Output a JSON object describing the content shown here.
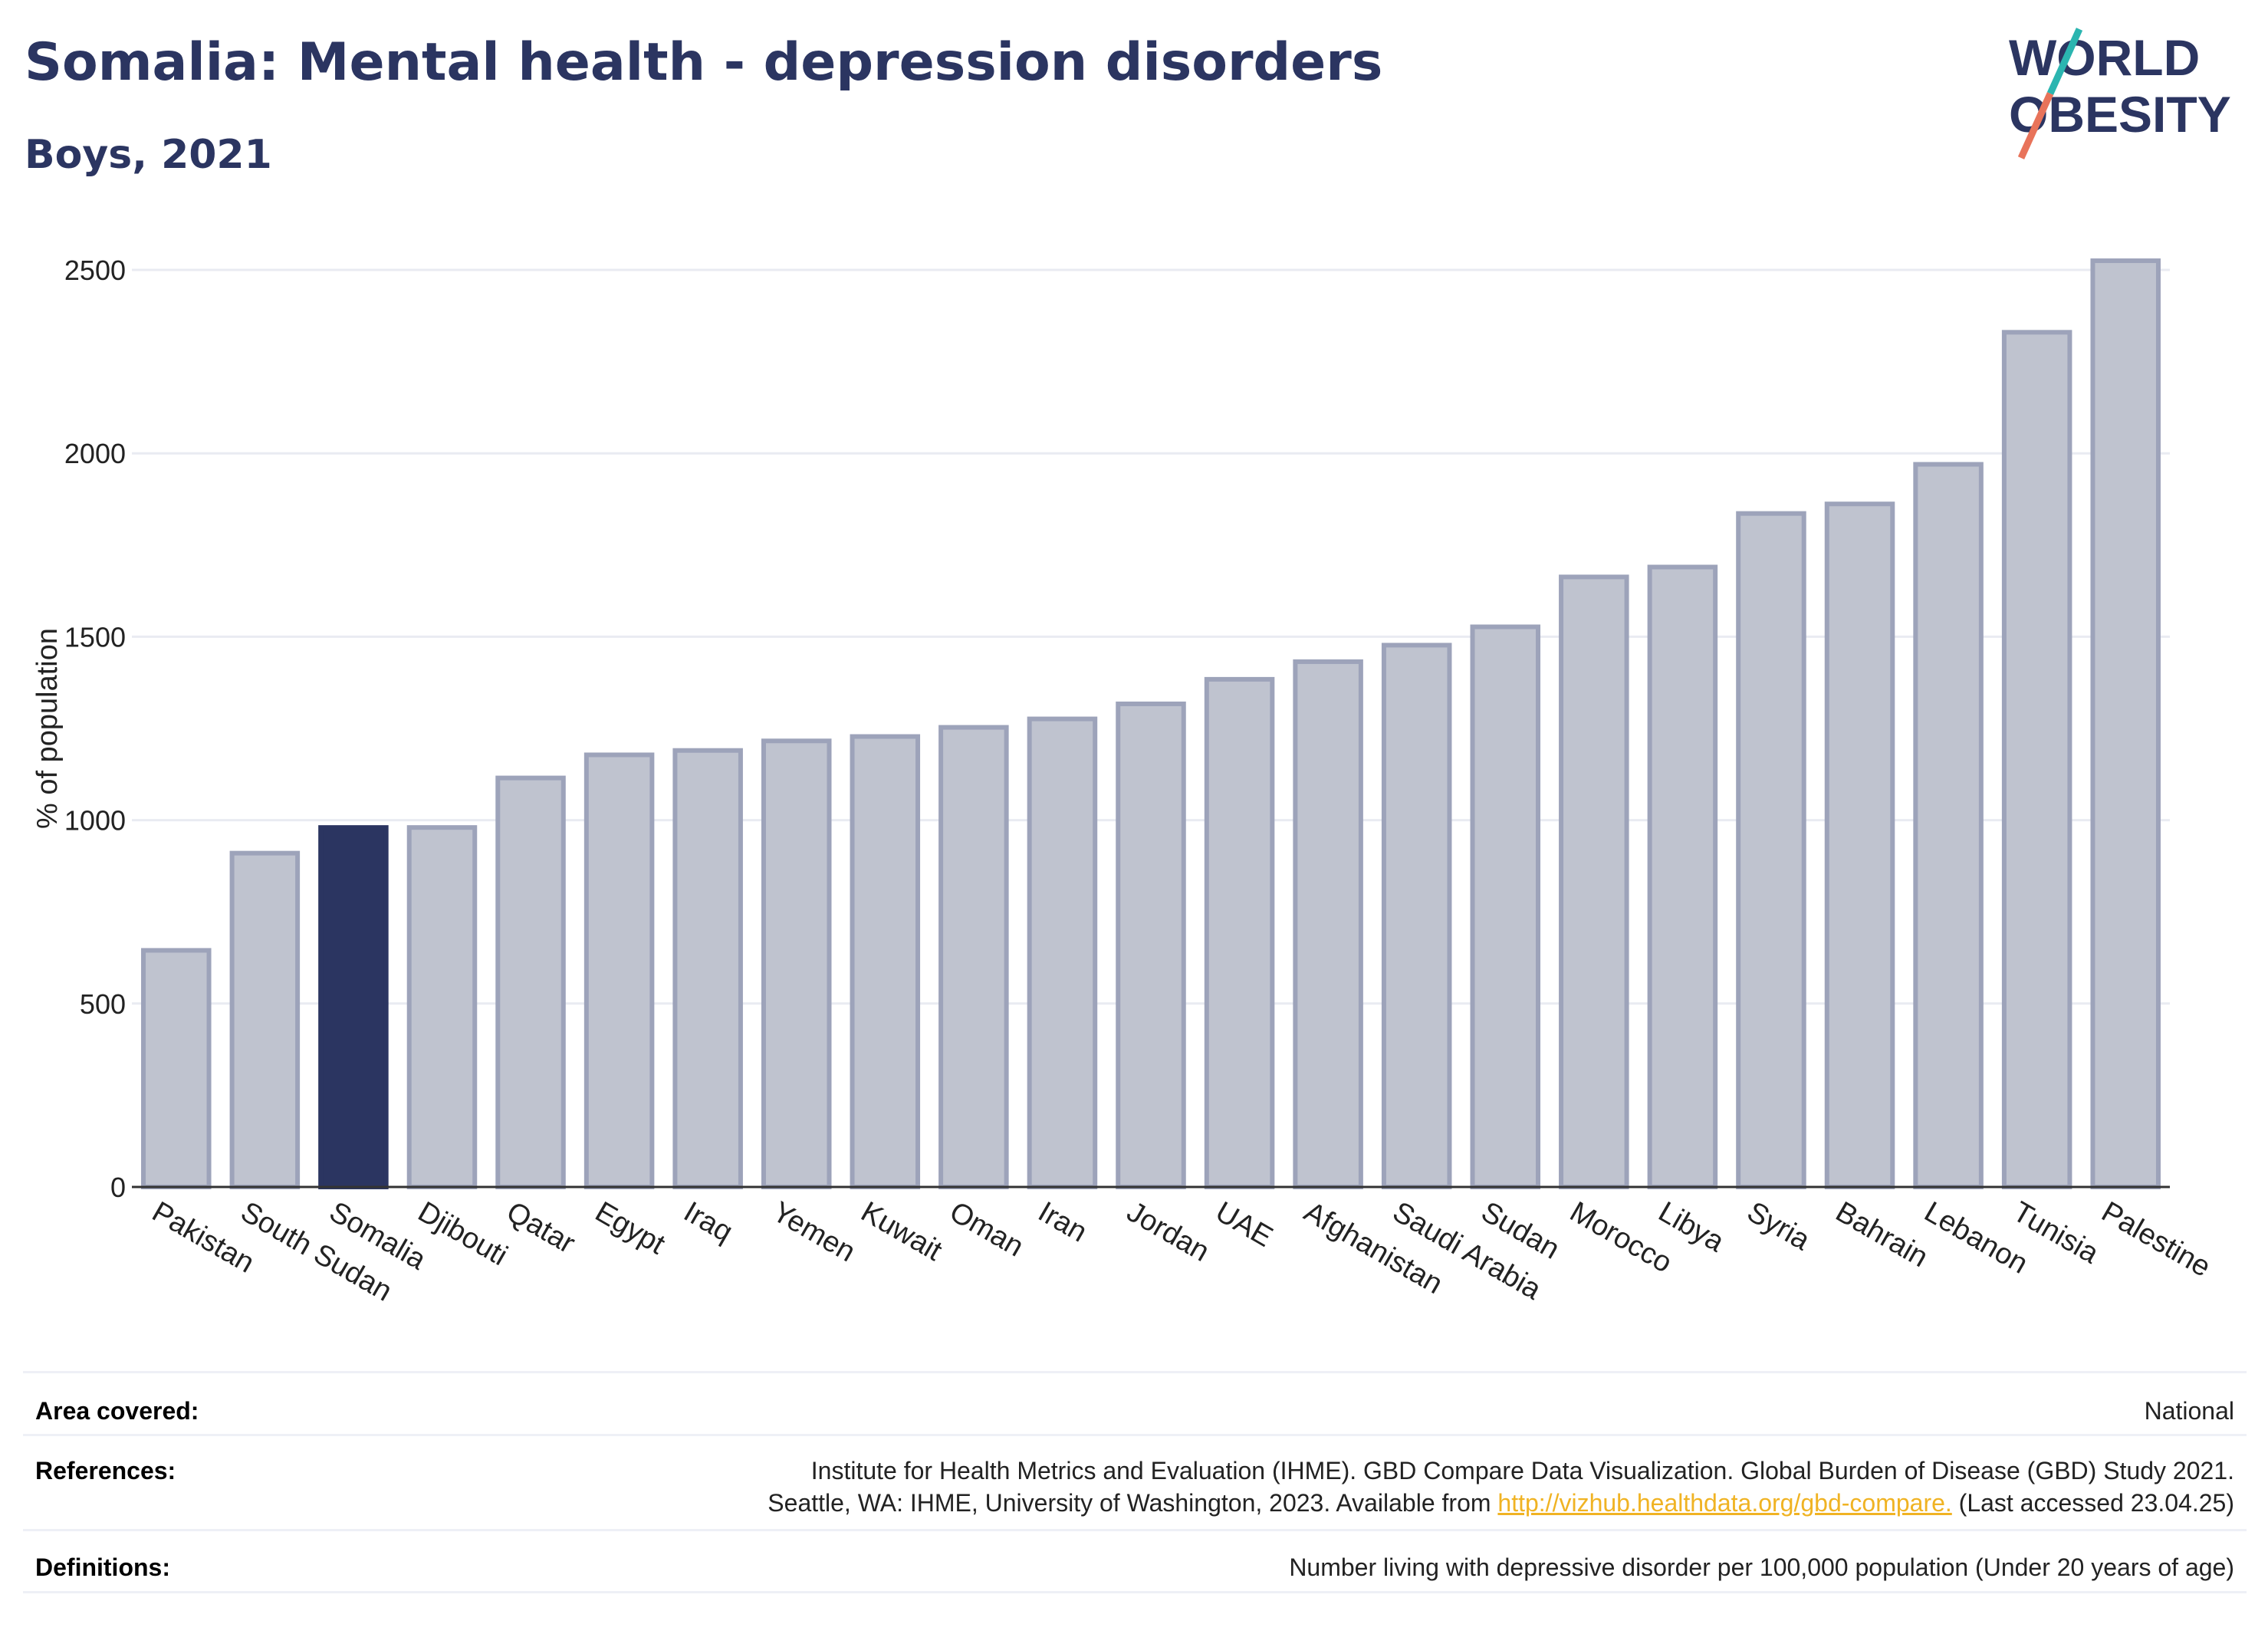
{
  "header": {
    "title": "Somalia: Mental health - depression disorders",
    "subtitle": "Boys, 2021"
  },
  "logo": {
    "line1": "WORLD",
    "line2": "OBESITY",
    "colors": {
      "text": "#2b3561",
      "slash_top": "#2bb5b0",
      "slash_bottom": "#e8735a"
    }
  },
  "chart_data": {
    "type": "bar",
    "ylabel": "% of population",
    "ylim": [
      0,
      2600
    ],
    "yticks": [
      0,
      500,
      1000,
      1500,
      2000,
      2500
    ],
    "grid": true,
    "highlight": "Somalia",
    "colors": {
      "bar": "#bfc3cf",
      "bar_edge": "#9da3ba",
      "highlight": "#2b3561"
    },
    "categories": [
      "Pakistan",
      "South Sudan",
      "Somalia",
      "Djibouti",
      "Qatar",
      "Egypt",
      "Iraq",
      "Yemen",
      "Kuwait",
      "Oman",
      "Iran",
      "Jordan",
      "UAE",
      "Afghanistan",
      "Saudi Arabia",
      "Sudan",
      "Morocco",
      "Libya",
      "Syria",
      "Bahrain",
      "Lebanon",
      "Tunisia",
      "Palestine"
    ],
    "values": [
      645,
      910,
      980,
      980,
      1115,
      1178,
      1190,
      1216,
      1228,
      1253,
      1276,
      1317,
      1384,
      1432,
      1477,
      1527,
      1663,
      1690,
      1836,
      1862,
      1970,
      2330,
      2525
    ]
  },
  "footer": {
    "area_label": "Area covered:",
    "area_value": "National",
    "references_label": "References:",
    "references_line1": "Institute for Health Metrics and Evaluation (IHME). GBD Compare Data Visualization. Global Burden of Disease (GBD) Study 2021.",
    "references_line2_pre": "Seattle, WA: IHME, University of Washington, 2023. Available from ",
    "references_link": "http://vizhub.healthdata.org/gbd-compare.",
    "references_line2_post": " (Last accessed 23.04.25)",
    "definitions_label": "Definitions:",
    "definitions_value": "Number living with depressive disorder per 100,000 population (Under 20 years of age)"
  }
}
